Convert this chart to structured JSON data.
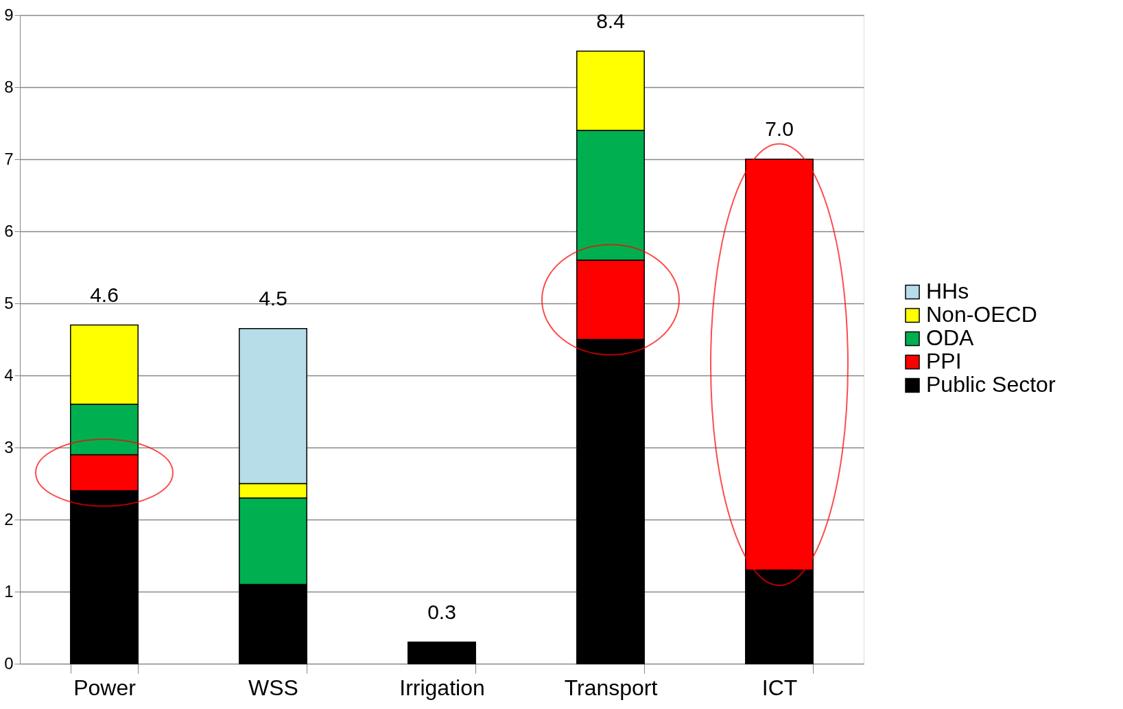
{
  "chart_data": {
    "type": "bar",
    "stacked": true,
    "categories": [
      "Power",
      "WSS",
      "Irrigation",
      "Transport",
      "ICT"
    ],
    "series": [
      {
        "name": "Public Sector",
        "color": "#000000",
        "values": [
          2.4,
          1.1,
          0.3,
          4.5,
          1.3
        ]
      },
      {
        "name": "PPI",
        "color": "#ff0000",
        "values": [
          0.5,
          null,
          null,
          1.1,
          5.7
        ]
      },
      {
        "name": "ODA",
        "color": "#00b050",
        "values": [
          0.7,
          1.2,
          null,
          1.8,
          null
        ]
      },
      {
        "name": "Non-OECD",
        "color": "#ffff00",
        "values": [
          1.1,
          0.2,
          null,
          1.1,
          null
        ]
      },
      {
        "name": "HHs",
        "color": "#b7dee8",
        "values": [
          null,
          2.15,
          null,
          null,
          null
        ]
      }
    ],
    "totals": [
      "4.6",
      "4.5",
      "0.3",
      "8.4",
      "7.0"
    ],
    "ylim": [
      0,
      9
    ],
    "yticks": [
      0,
      1,
      2,
      3,
      4,
      5,
      6,
      7,
      8,
      9
    ],
    "grid": "y",
    "legend": "right"
  }
}
